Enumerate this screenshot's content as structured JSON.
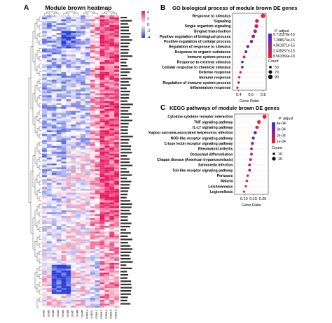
{
  "panel_a": {
    "letter": "A",
    "title": "Module brown heatmap",
    "legend_ticks": [
      "4",
      "2",
      "0",
      "-2",
      "-4"
    ],
    "colors": {
      "high": "#e8175d",
      "mid": "#ffffff",
      "low": "#2a3fd8"
    },
    "sample_labels": [
      "GSM1",
      "GSM2",
      "GSM3",
      "GSM4",
      "GSM5",
      "GSM6",
      "GSM7",
      "GSM8",
      "GSM9",
      "GSM10",
      "GSM11",
      "GSM12",
      "GSM13",
      "GSM14",
      "GSM15",
      "GSM16"
    ],
    "gene_label_count": 90
  },
  "chart_data": [
    {
      "type": "scatter",
      "panel": "B",
      "title": "GO biological process of module brown DE genes",
      "xlabel": "Gene Ratio",
      "ylabel": "",
      "xlim": [
        0.3,
        0.85
      ],
      "xticks": [
        "0.4",
        "0.6",
        "0.8"
      ],
      "categories": [
        "Response to stimulus",
        "Signaling",
        "Single organism signaling",
        "Singnal transduction",
        "Positive regulation of biological process",
        "Positive regulation of cellular process",
        "Regulation of response to stimulus",
        "Response to organic substance",
        "Immune system process",
        "Response to external stimulus",
        "Cellular response to chemical stimulus",
        "Defense response",
        "Immune response",
        "Regulation of immune system process",
        "Inflammatory response"
      ],
      "x": [
        0.8,
        0.7,
        0.69,
        0.67,
        0.64,
        0.61,
        0.55,
        0.52,
        0.49,
        0.46,
        0.46,
        0.43,
        0.41,
        0.4,
        0.38
      ],
      "count": [
        88,
        74,
        72,
        70,
        67,
        64,
        58,
        55,
        52,
        49,
        48,
        46,
        44,
        43,
        41
      ],
      "p_adjust": [
        8.6e-18,
        2e-15,
        4e-15,
        3.2e-15,
        5.6e-15,
        6.3e-15,
        7.3e-15,
        7.8e-15,
        8.6e-18,
        9e-15,
        9.3e-15,
        8.9e-18,
        2.4e-16,
        9.7e-15,
        8.7e-18
      ],
      "legend": {
        "color_title": "P. adjust",
        "color_ticks": [
          "9.715378e-15",
          "7.288674e-15",
          "4.861971e-15",
          "2.435267e-15",
          "8.563356e-18"
        ],
        "size_title": "Count",
        "size_ticks": [
          50,
          70,
          90
        ]
      }
    },
    {
      "type": "scatter",
      "panel": "C",
      "title": "KEGG pathways of module brown DE genes",
      "xlabel": "Gene Ratio",
      "ylabel": "",
      "xlim": [
        0.05,
        0.23
      ],
      "xticks": [
        "0.10",
        "0.15",
        "0.20"
      ],
      "categories": [
        "Cytokine-cytokine receptor interaction",
        "TNF signaling pathway",
        "IL-17 signaling pathway",
        "Kaposi sarcoma-associated herpesvirus infection",
        "NOD-like receptor signaling pathway",
        "C-type lectin receptor signaling pathway",
        "Rheumatoid arthritis",
        "Osteoclast differentiation",
        "Chagas disease (American trypanosomiasis)",
        "Salmonella infection",
        "Toll-like receptor signaling pathway",
        "Pertussis",
        "Malaria",
        "Leishmaniasis",
        "Legionellosis"
      ],
      "x": [
        0.21,
        0.18,
        0.17,
        0.16,
        0.15,
        0.145,
        0.14,
        0.14,
        0.135,
        0.13,
        0.13,
        0.12,
        0.115,
        0.11,
        0.1
      ],
      "count": [
        17,
        15,
        14,
        13,
        12,
        12,
        11,
        11,
        11,
        11,
        11,
        10,
        10,
        9,
        9
      ],
      "p_adjust": [
        2e-05,
        4e-05,
        6e-05,
        0.00049,
        0.00045,
        0.0003,
        0.00018,
        0.00022,
        0.00016,
        0.00026,
        0.00024,
        8e-05,
        0.0001,
        0.00012,
        9e-05
      ],
      "legend": {
        "color_title": "P. adjust",
        "color_ticks": [
          "4e-04",
          "3e-04",
          "2e-04",
          "1e-04"
        ],
        "size_title": "Count",
        "size_ticks": [
          10,
          15
        ]
      }
    }
  ]
}
